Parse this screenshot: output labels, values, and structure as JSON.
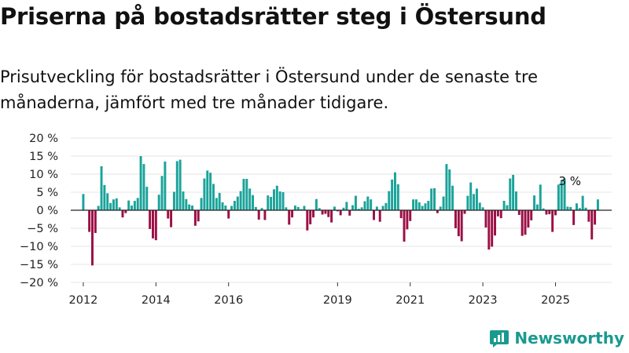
{
  "title": "Priserna på bostadsrätter steg i Östersund",
  "subtitle": "Prisutveckling för bostadsrätter i Östersund under de senaste tre månaderna, jämfört med tre månader tidigare.",
  "brand": "Newsworthy",
  "colors": {
    "positive": "#1aa39a",
    "negative": "#9c0f45",
    "brand": "#1a9a8f",
    "grid": "#e4e4e4",
    "zero": "#222222"
  },
  "chart_data": {
    "type": "bar",
    "ylim": [
      -20,
      20
    ],
    "ytick_values": [
      20,
      15,
      10,
      5,
      0,
      -5,
      -10,
      -15,
      -20
    ],
    "ytick_labels": [
      "20 %",
      "15 %",
      "10 %",
      "5 %",
      "0 %",
      "−5 %",
      "−10 %",
      "−15 %",
      "−20 %"
    ],
    "xtick_labels": [
      "2012",
      "2014",
      "2016",
      "2019",
      "2021",
      "2023",
      "2025"
    ],
    "xtick_months": [
      "2012-01",
      "2014-01",
      "2016-01",
      "2019-01",
      "2021-01",
      "2023-01",
      "2025-01"
    ],
    "annotation": "3 %",
    "annotation_month": "2025-06",
    "grid": true,
    "x_start": "2012-01",
    "values": [
      4.5,
      0,
      -6,
      -15.3,
      -6.3,
      1.2,
      12.2,
      7,
      4.7,
      2,
      3,
      3.3,
      0.8,
      -2,
      -0.8,
      2.7,
      1.3,
      2.6,
      3.4,
      15,
      12.8,
      6.5,
      -5.2,
      -7.8,
      -8.3,
      4.3,
      9.5,
      13.5,
      -2.3,
      -4.7,
      5.1,
      13.6,
      14,
      5.2,
      3.1,
      1.6,
      1.3,
      -4.3,
      -3.1,
      3.4,
      8.8,
      11,
      10.4,
      7.3,
      3.4,
      4.8,
      2.2,
      1.3,
      -2.3,
      1.2,
      2.6,
      3.8,
      5.3,
      8.7,
      8.7,
      6,
      4.2,
      0.9,
      -2.6,
      0.6,
      -2.7,
      4.1,
      3.7,
      5.8,
      6.8,
      5.2,
      5,
      0.8,
      -4,
      -2,
      1.3,
      0.9,
      0.3,
      1.2,
      -5.6,
      -3.9,
      -2,
      3.1,
      0.6,
      -1.2,
      -1,
      -1.9,
      -3.4,
      1,
      -0.3,
      -1.4,
      0.7,
      2.3,
      -1.5,
      1.4,
      4,
      0.4,
      0.8,
      2.5,
      3.8,
      3,
      -2.7,
      1,
      -3.2,
      1.2,
      2,
      5.3,
      8.5,
      10.5,
      7.2,
      -2.2,
      -8.7,
      -5.3,
      -3,
      3,
      3,
      2.2,
      1.2,
      1.9,
      2.6,
      6,
      6.1,
      -0.8,
      1,
      3.8,
      12.8,
      11.3,
      6.8,
      -5,
      -7.2,
      -8.6,
      -1,
      4,
      7.7,
      4.5,
      6,
      2.1,
      0.8,
      -4.8,
      -10.9,
      -10.1,
      -7,
      -1.7,
      -2.2,
      2.6,
      1.4,
      8.8,
      9.8,
      5.2,
      -1.3,
      -7.1,
      -6.8,
      -4.8,
      -2.8,
      4.1,
      1.6,
      7.1,
      0.5,
      -1.2,
      -1.1,
      -6,
      -1.4,
      7.1,
      8.2,
      8.8,
      1,
      0.9,
      -4.1,
      1.9,
      0.6,
      4,
      0.7,
      -3.2,
      -8.1,
      -4,
      3
    ]
  }
}
